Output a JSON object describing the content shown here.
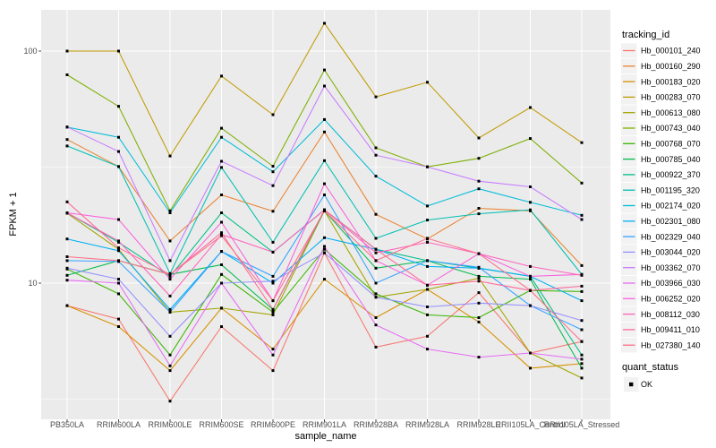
{
  "figure": {
    "panel_bg": "#EBEBEB",
    "grid_color": "#FFFFFF",
    "tick_color": "#333333",
    "axis_text_color": "#4D4D4D",
    "text_color": "#000000",
    "legend_key_bg": "#F2F2F2",
    "point_color": "#000000"
  },
  "axes": {
    "x_title": "sample_name",
    "y_title": "FPKM + 1",
    "y_tick_labels": [
      "100",
      "10"
    ],
    "y_tick_values": [
      100,
      10
    ],
    "y_minor_values": [
      31.6228,
      3.16228
    ]
  },
  "legend": {
    "tracking_title": "tracking_id",
    "quant_title": "quant_status",
    "quant_items": [
      "OK"
    ]
  },
  "chart_data": {
    "type": "line",
    "title": "",
    "xlabel": "sample_name",
    "ylabel": "FPKM + 1",
    "y_scale": "log10",
    "ylim": [
      2.6,
      152
    ],
    "grid": true,
    "legend_position": "right",
    "point_marker": "filled-square",
    "x_categories": [
      "PB350LA",
      "RRIM600LA",
      "RRIM600LE",
      "RRIM600SE",
      "RRIM600PE",
      "RRIM901LA",
      "RRIM928BA",
      "RRIM928LA",
      "RRIM928LE",
      "RRII105LA_Control",
      "RRII105LA_Stressed"
    ],
    "series": [
      {
        "name": "Hb_000101_240",
        "color": "#F8766D",
        "values": [
          8.0,
          7.0,
          3.1,
          6.5,
          4.2,
          13.5,
          5.3,
          5.9,
          9.1,
          5.0,
          5.6
        ]
      },
      {
        "name": "Hb_000160_290",
        "color": "#EA8331",
        "values": [
          41.6,
          31.8,
          15.2,
          24.0,
          20.4,
          44.8,
          19.8,
          15.5,
          21.0,
          20.5,
          11.9
        ]
      },
      {
        "name": "Hb_000183_020",
        "color": "#D89000",
        "values": [
          8.0,
          6.5,
          4.2,
          7.8,
          5.2,
          10.4,
          7.1,
          9.4,
          6.8,
          4.3,
          4.5
        ]
      },
      {
        "name": "Hb_000283_070",
        "color": "#C09B00",
        "values": [
          100,
          100,
          35.3,
          78,
          53.2,
          131.7,
          63.5,
          73.4,
          42.2,
          57.1,
          40.3
        ]
      },
      {
        "name": "Hb_000613_080",
        "color": "#A3A500",
        "values": [
          20.0,
          14.0,
          7.5,
          7.8,
          7.3,
          20.5,
          8.7,
          9.4,
          10.5,
          5.0,
          3.9
        ]
      },
      {
        "name": "Hb_000743_040",
        "color": "#7CAE00",
        "values": [
          79,
          57.8,
          20.5,
          46.5,
          31.9,
          82.9,
          38.3,
          31.7,
          34.5,
          42.0,
          27.0
        ]
      },
      {
        "name": "Hb_000768_070",
        "color": "#39B600",
        "values": [
          11.5,
          9.0,
          4.9,
          10.9,
          7.5,
          14.0,
          9.0,
          7.3,
          7.1,
          9.3,
          9.2
        ]
      },
      {
        "name": "Hb_000785_040",
        "color": "#00BB4E",
        "values": [
          10.8,
          12.5,
          10.9,
          12.0,
          7.7,
          20.5,
          11.6,
          12.5,
          10.7,
          10.4,
          4.3
        ]
      },
      {
        "name": "Hb_000922_370",
        "color": "#00C087",
        "values": [
          20.1,
          15.0,
          10.7,
          20.1,
          13.6,
          20.7,
          14.0,
          12.5,
          11.6,
          10.7,
          4.9
        ]
      },
      {
        "name": "Hb_001195_320",
        "color": "#00C0B2",
        "values": [
          39.0,
          31.8,
          11.0,
          31.5,
          15.0,
          33.7,
          15.6,
          18.7,
          19.9,
          20.7,
          10.9
        ]
      },
      {
        "name": "Hb_002174_020",
        "color": "#00BCD8",
        "values": [
          47.0,
          42.5,
          20.1,
          42.5,
          30.2,
          50.7,
          28.9,
          21.5,
          25.5,
          22.3,
          19.6
        ]
      },
      {
        "name": "Hb_002301_080",
        "color": "#00B0F6",
        "values": [
          15.5,
          13.8,
          7.7,
          13.7,
          10.0,
          15.7,
          14.0,
          11.8,
          11.6,
          10.7,
          8.4
        ]
      },
      {
        "name": "Hb_002329_040",
        "color": "#35A2FF",
        "values": [
          12.5,
          12.4,
          7.5,
          13.7,
          10.7,
          24.0,
          10.0,
          12.5,
          11.7,
          8.0,
          6.3
        ]
      },
      {
        "name": "Hb_003044_020",
        "color": "#9590FF",
        "values": [
          11.6,
          10.4,
          5.9,
          10.0,
          10.2,
          13.5,
          8.7,
          7.9,
          8.2,
          8.0,
          6.9
        ]
      },
      {
        "name": "Hb_003362_070",
        "color": "#C77CFF",
        "values": [
          47.1,
          36.9,
          12.5,
          33.5,
          26.3,
          70.7,
          35.6,
          31.7,
          27.5,
          26.0,
          18.8
        ]
      },
      {
        "name": "Hb_003966_030",
        "color": "#E76BF3",
        "values": [
          10.3,
          10.0,
          4.4,
          10.0,
          4.9,
          14.4,
          6.6,
          5.2,
          4.8,
          5.0,
          4.7
        ]
      },
      {
        "name": "Hb_006252_020",
        "color": "#FA62DB",
        "values": [
          20.1,
          18.8,
          10.4,
          18.3,
          8.4,
          26.8,
          12.5,
          9.8,
          13.4,
          10.7,
          10.9
        ]
      },
      {
        "name": "Hb_008112_030",
        "color": "#FF62BC",
        "values": [
          20.1,
          15.2,
          8.8,
          16.2,
          13.6,
          20.7,
          13.5,
          15.0,
          13.4,
          11.8,
          10.8
        ]
      },
      {
        "name": "Hb_009411_010",
        "color": "#FF6A98",
        "values": [
          22.4,
          14.2,
          10.9,
          16.5,
          7.7,
          20.7,
          14.0,
          9.8,
          10.2,
          9.3,
          9.7
        ]
      },
      {
        "name": "Hb_027380_140",
        "color": "#FD6F88",
        "values": [
          13.0,
          12.5,
          10.9,
          16.0,
          8.4,
          20.5,
          12.5,
          15.6,
          13.4,
          9.3,
          5.6
        ]
      }
    ]
  }
}
